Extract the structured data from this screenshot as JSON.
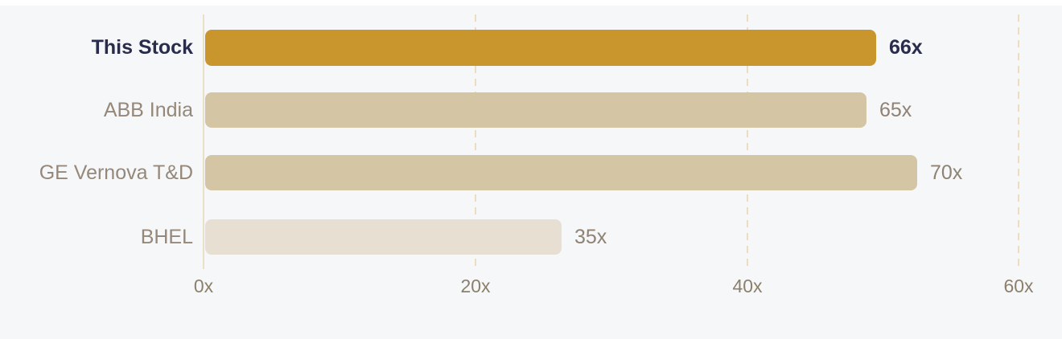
{
  "chart_data": {
    "type": "bar",
    "orientation": "horizontal",
    "categories": [
      "This Stock",
      "ABB India",
      "GE Vernova T&D",
      "BHEL"
    ],
    "values": [
      66,
      65,
      70,
      35
    ],
    "value_labels": [
      "66x",
      "65x",
      "70x",
      "35x"
    ],
    "highlighted_category": "This Stock",
    "grid": "vertical-dashed",
    "legend": "none",
    "x_axis": {
      "tick_labels": [
        "0x",
        "20x",
        "40x",
        "60x"
      ],
      "tick_values": [
        0,
        20,
        40,
        60
      ]
    },
    "colors": {
      "highlight_bar": "#c9962d",
      "bar": "#d4c5a4",
      "muted_bar": "#e7dfd1",
      "gridline": "#ecdcc0",
      "axis_line": "#ecdfc8",
      "highlight_text": "#292d4b",
      "label_text": "#95887a",
      "tick_text": "#8c7f6c",
      "background": "#f6f7f9"
    },
    "rows": [
      {
        "label": "This Stock",
        "value": 66,
        "value_label": "66x",
        "color": "#c9962d",
        "emphasis": true
      },
      {
        "label": "ABB India",
        "value": 65,
        "value_label": "65x",
        "color": "#d4c5a4",
        "emphasis": false
      },
      {
        "label": "GE Vernova T&D",
        "value": 70,
        "value_label": "70x",
        "color": "#d4c5a4",
        "emphasis": false
      },
      {
        "label": "BHEL",
        "value": 35,
        "value_label": "35x",
        "color": "#e7dfd1",
        "emphasis": false
      }
    ]
  }
}
